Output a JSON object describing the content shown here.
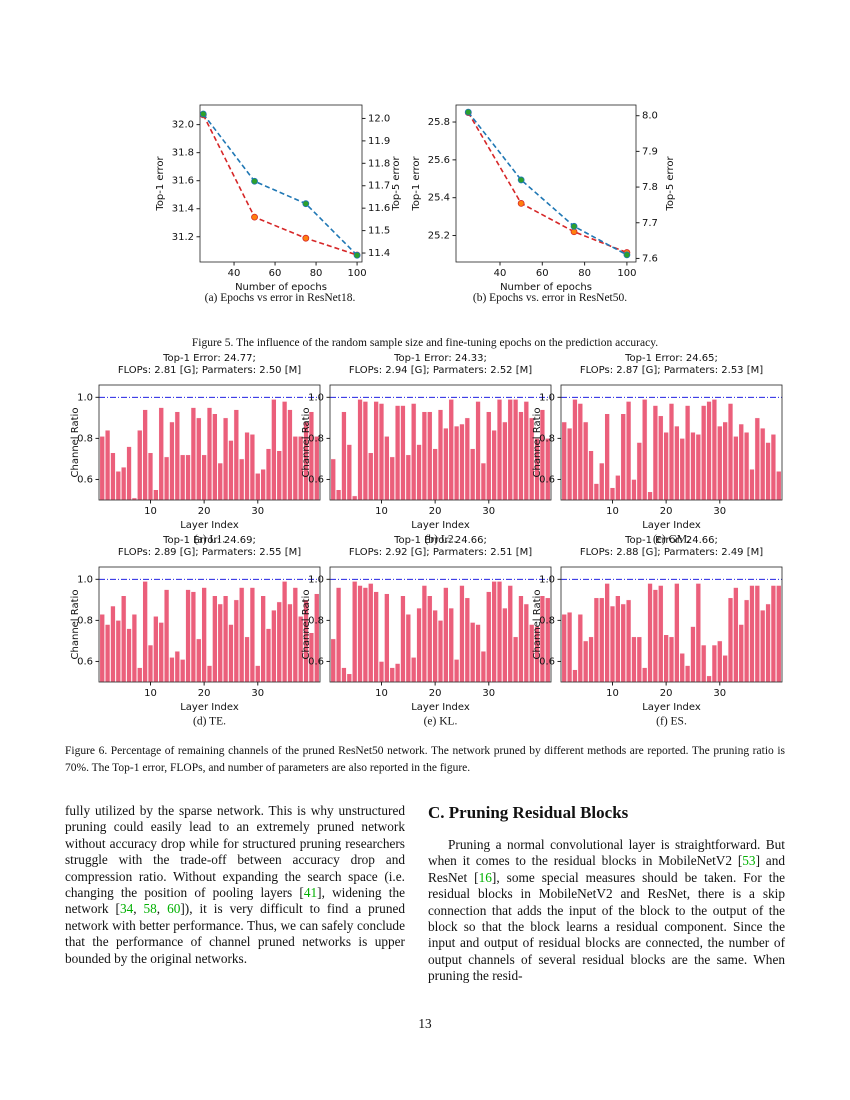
{
  "figure5": {
    "caption": "Figure 5. The influence of the random sample size and fine-tuning epochs on the prediction accuracy.",
    "subcaptions": [
      "(a) Epochs vs error in ResNet18.",
      "(b) Epochs vs. error in ResNet50."
    ]
  },
  "figure6": {
    "caption": "Figure 6. Percentage of remaining channels of the pruned ResNet50 network. The network pruned by different methods are reported. The pruning ratio is 70%. The Top-1 error, FLOPs, and number of parameters are also reported in the figure.",
    "subcaptions": [
      "(a) L1.",
      "(b) L2.",
      "(c) GM.",
      "(d) TE.",
      "(e) KL.",
      "(f) ES."
    ]
  },
  "chart_data": [
    {
      "type": "line",
      "xlabel": "Number of epochs",
      "ylabel": "Top-1 error",
      "y2label": "Top-5 error",
      "x": [
        25,
        50,
        75,
        100
      ],
      "xlim": [
        23.4,
        102.4
      ],
      "xticks": [
        40,
        60,
        80,
        100
      ],
      "ylim": [
        31.02,
        32.14
      ],
      "yticks": [
        31.2,
        31.4,
        31.6,
        31.8,
        {
          "value": 32,
          "label": "32.0"
        }
      ],
      "y2lim": [
        11.36,
        12.06
      ],
      "y2ticks": [
        11.4,
        11.5,
        11.6,
        11.7,
        11.8,
        11.9,
        {
          "value": 12,
          "label": "12.0"
        }
      ],
      "series": [
        {
          "color": "#d62728",
          "marker_color": "#ff7f0e",
          "values": [
            32.07,
            31.34,
            31.19,
            31.07
          ]
        },
        {
          "color": "#1f77b4",
          "marker_color": "#2ca02c",
          "axis": "y2",
          "values": [
            12.02,
            11.72,
            11.62,
            11.39
          ]
        }
      ]
    },
    {
      "type": "line",
      "xlabel": "Number of epochs",
      "ylabel": "Top-1 error",
      "y2label": "Top-5 error",
      "x": [
        25,
        50,
        75,
        100
      ],
      "xlim": [
        19.2,
        104.3
      ],
      "xticks": [
        40,
        60,
        80,
        100
      ],
      "ylim": [
        25.06,
        25.89
      ],
      "yticks": [
        25.2,
        25.4,
        25.6,
        25.8
      ],
      "y2lim": [
        7.59,
        8.03
      ],
      "y2ticks": [
        7.6,
        7.7,
        7.8,
        7.9,
        {
          "value": 8,
          "label": "8.0"
        }
      ],
      "series": [
        {
          "color": "#d62728",
          "marker_color": "#ff7f0e",
          "values": [
            25.85,
            25.37,
            25.22,
            25.11
          ]
        },
        {
          "color": "#1f77b4",
          "marker_color": "#2ca02c",
          "axis": "y2",
          "values": [
            8.01,
            7.82,
            7.69,
            7.61
          ]
        }
      ]
    },
    {
      "type": "bar",
      "title": [
        "Top-1 Error: 24.77;",
        "FLOPs: 2.81 [G]; Parmaters: 2.50 [M]"
      ],
      "xlabel": "Layer Index",
      "ylabel": "Channel Ratio",
      "color": "#eb5f7b",
      "hline": 1,
      "hline_color": "#0000dd",
      "xlim": [
        0.4,
        41.6
      ],
      "xticks": [
        10,
        20,
        30
      ],
      "ylim": [
        0.5,
        1.06
      ],
      "yticks": [
        0.6,
        0.8,
        {
          "value": 1,
          "label": "1.0"
        }
      ],
      "x": [
        1,
        2,
        3,
        4,
        5,
        6,
        7,
        8,
        9,
        10,
        11,
        12,
        13,
        14,
        15,
        16,
        17,
        18,
        19,
        20,
        21,
        22,
        23,
        24,
        25,
        26,
        27,
        28,
        29,
        30,
        31,
        32,
        33,
        34,
        35,
        36,
        37,
        38,
        39,
        40,
        41
      ],
      "values": [
        0.81,
        0.84,
        0.73,
        0.64,
        0.66,
        0.76,
        0.51,
        0.84,
        0.94,
        0.73,
        0.55,
        0.95,
        0.71,
        0.88,
        0.93,
        0.72,
        0.72,
        0.95,
        0.9,
        0.72,
        0.95,
        0.92,
        0.68,
        0.9,
        0.79,
        0.94,
        0.7,
        0.83,
        0.82,
        0.63,
        0.65,
        0.75,
        0.99,
        0.74,
        0.98,
        0.94,
        0.81,
        0.81,
        0.88,
        0.93,
        0.81
      ]
    },
    {
      "type": "bar",
      "title": [
        "Top-1 Error: 24.33;",
        "FLOPs: 2.94 [G]; Parmaters: 2.52 [M]"
      ],
      "xlabel": "Layer Index",
      "ylabel": "Channel Ratio",
      "color": "#eb5f7b",
      "hline": 1,
      "hline_color": "#0000dd",
      "xlim": [
        0.4,
        41.6
      ],
      "xticks": [
        10,
        20,
        30
      ],
      "ylim": [
        0.5,
        1.06
      ],
      "yticks": [
        0.6,
        0.8,
        {
          "value": 1,
          "label": "1.0"
        }
      ],
      "x": [
        1,
        2,
        3,
        4,
        5,
        6,
        7,
        8,
        9,
        10,
        11,
        12,
        13,
        14,
        15,
        16,
        17,
        18,
        19,
        20,
        21,
        22,
        23,
        24,
        25,
        26,
        27,
        28,
        29,
        30,
        31,
        32,
        33,
        34,
        35,
        36,
        37,
        38,
        39,
        40,
        41
      ],
      "values": [
        0.7,
        0.55,
        0.93,
        0.77,
        0.52,
        0.99,
        0.98,
        0.73,
        0.98,
        0.97,
        0.81,
        0.71,
        0.96,
        0.96,
        0.72,
        0.97,
        0.77,
        0.93,
        0.93,
        0.75,
        0.94,
        0.85,
        0.99,
        0.86,
        0.87,
        0.9,
        0.75,
        0.98,
        0.68,
        0.93,
        0.84,
        0.99,
        0.88,
        0.99,
        0.99,
        0.93,
        0.98,
        0.9,
        0.8,
        0.94,
        0.8
      ]
    },
    {
      "type": "bar",
      "title": [
        "Top-1 Error: 24.65;",
        "FLOPs: 2.87 [G]; Parmaters: 2.53 [M]"
      ],
      "xlabel": "Layer Index",
      "ylabel": "Channel Ratio",
      "color": "#eb5f7b",
      "hline": 1,
      "hline_color": "#0000dd",
      "xlim": [
        0.4,
        41.6
      ],
      "xticks": [
        10,
        20,
        30
      ],
      "ylim": [
        0.5,
        1.06
      ],
      "yticks": [
        0.6,
        0.8,
        {
          "value": 1,
          "label": "1.0"
        }
      ],
      "x": [
        1,
        2,
        3,
        4,
        5,
        6,
        7,
        8,
        9,
        10,
        11,
        12,
        13,
        14,
        15,
        16,
        17,
        18,
        19,
        20,
        21,
        22,
        23,
        24,
        25,
        26,
        27,
        28,
        29,
        30,
        31,
        32,
        33,
        34,
        35,
        36,
        37,
        38,
        39,
        40,
        41
      ],
      "values": [
        0.88,
        0.85,
        0.99,
        0.97,
        0.88,
        0.74,
        0.58,
        0.68,
        0.92,
        0.56,
        0.62,
        0.92,
        0.98,
        0.6,
        0.78,
        0.99,
        0.54,
        0.96,
        0.91,
        0.83,
        0.97,
        0.86,
        0.8,
        0.96,
        0.83,
        0.82,
        0.96,
        0.98,
        0.99,
        0.86,
        0.88,
        0.97,
        0.81,
        0.87,
        0.83,
        0.65,
        0.9,
        0.85,
        0.78,
        0.82,
        0.64
      ]
    },
    {
      "type": "bar",
      "title": [
        "Top-1 Error: 24.69;",
        "FLOPs: 2.89 [G]; Parmaters: 2.55 [M]"
      ],
      "xlabel": "Layer Index",
      "ylabel": "Channel Ratio",
      "color": "#eb5f7b",
      "hline": 1,
      "hline_color": "#0000dd",
      "xlim": [
        0.4,
        41.6
      ],
      "xticks": [
        10,
        20,
        30
      ],
      "ylim": [
        0.5,
        1.06
      ],
      "yticks": [
        0.6,
        0.8,
        {
          "value": 1,
          "label": "1.0"
        }
      ],
      "x": [
        1,
        2,
        3,
        4,
        5,
        6,
        7,
        8,
        9,
        10,
        11,
        12,
        13,
        14,
        15,
        16,
        17,
        18,
        19,
        20,
        21,
        22,
        23,
        24,
        25,
        26,
        27,
        28,
        29,
        30,
        31,
        32,
        33,
        34,
        35,
        36,
        37,
        38,
        39,
        40,
        41
      ],
      "values": [
        0.83,
        0.78,
        0.87,
        0.8,
        0.92,
        0.76,
        0.83,
        0.57,
        0.99,
        0.68,
        0.82,
        0.79,
        0.95,
        0.62,
        0.65,
        0.61,
        0.95,
        0.94,
        0.71,
        0.96,
        0.58,
        0.92,
        0.88,
        0.92,
        0.78,
        0.9,
        0.96,
        0.72,
        0.96,
        0.58,
        0.92,
        0.76,
        0.85,
        0.89,
        0.99,
        0.88,
        0.96,
        0.82,
        0.9,
        0.74,
        0.93
      ]
    },
    {
      "type": "bar",
      "title": [
        "Top-1 Error: 24.66;",
        "FLOPs: 2.92 [G]; Parmaters: 2.51 [M]"
      ],
      "xlabel": "Layer Index",
      "ylabel": "Channel Ratio",
      "color": "#eb5f7b",
      "hline": 1,
      "hline_color": "#0000dd",
      "xlim": [
        0.4,
        41.6
      ],
      "xticks": [
        10,
        20,
        30
      ],
      "ylim": [
        0.5,
        1.06
      ],
      "yticks": [
        0.6,
        0.8,
        {
          "value": 1,
          "label": "1.0"
        }
      ],
      "x": [
        1,
        2,
        3,
        4,
        5,
        6,
        7,
        8,
        9,
        10,
        11,
        12,
        13,
        14,
        15,
        16,
        17,
        18,
        19,
        20,
        21,
        22,
        23,
        24,
        25,
        26,
        27,
        28,
        29,
        30,
        31,
        32,
        33,
        34,
        35,
        36,
        37,
        38,
        39,
        40,
        41
      ],
      "values": [
        0.71,
        0.96,
        0.57,
        0.54,
        0.99,
        0.97,
        0.96,
        0.98,
        0.94,
        0.6,
        0.93,
        0.57,
        0.59,
        0.92,
        0.83,
        0.62,
        0.86,
        0.97,
        0.92,
        0.85,
        0.8,
        0.96,
        0.86,
        0.61,
        0.97,
        0.91,
        0.79,
        0.78,
        0.65,
        0.94,
        0.99,
        0.99,
        0.86,
        0.97,
        0.72,
        0.92,
        0.88,
        0.78,
        0.77,
        0.92,
        0.91
      ]
    },
    {
      "type": "bar",
      "title": [
        "Top-1 Error: 24.66;",
        "FLOPs: 2.88 [G]; Parmaters: 2.49 [M]"
      ],
      "xlabel": "Layer Index",
      "ylabel": "Channel Ratio",
      "color": "#eb5f7b",
      "hline": 1,
      "hline_color": "#0000dd",
      "xlim": [
        0.4,
        41.6
      ],
      "xticks": [
        10,
        20,
        30
      ],
      "ylim": [
        0.5,
        1.06
      ],
      "yticks": [
        0.6,
        0.8,
        {
          "value": 1,
          "label": "1.0"
        }
      ],
      "x": [
        1,
        2,
        3,
        4,
        5,
        6,
        7,
        8,
        9,
        10,
        11,
        12,
        13,
        14,
        15,
        16,
        17,
        18,
        19,
        20,
        21,
        22,
        23,
        24,
        25,
        26,
        27,
        28,
        29,
        30,
        31,
        32,
        33,
        34,
        35,
        36,
        37,
        38,
        39,
        40,
        41
      ],
      "values": [
        0.83,
        0.84,
        0.56,
        0.83,
        0.7,
        0.72,
        0.91,
        0.91,
        0.98,
        0.87,
        0.92,
        0.88,
        0.9,
        0.72,
        0.72,
        0.57,
        0.98,
        0.95,
        0.97,
        0.73,
        0.72,
        0.98,
        0.64,
        0.58,
        0.77,
        0.98,
        0.68,
        0.53,
        0.68,
        0.7,
        0.63,
        0.91,
        0.96,
        0.78,
        0.9,
        0.97,
        0.97,
        0.85,
        0.88,
        0.97,
        0.97
      ]
    }
  ],
  "body": {
    "left": [
      "fully utilized by the sparse network. This is why unstructured pruning could easily lead to an extremely pruned network without accuracy drop while for structured pruning researchers struggle with the trade-off between accuracy drop and compression ratio. Without expanding the search space (i.e. changing the position of pooling layers [",
      "41",
      "], widening the network [",
      "34",
      ", ",
      "58",
      ", ",
      "60",
      "]), it is very difficult to find a pruned network with better performance. Thus, we can safely conclude that the performance of channel pruned networks is upper bounded by the original networks."
    ],
    "heading": "C. Pruning Residual Blocks",
    "right": [
      "Pruning a normal convolutional layer is straightforward. But when it comes to the residual blocks in MobileNetV2 [",
      "53",
      "] and ResNet [",
      "16",
      "], some special measures should be taken. For the residual blocks in MobileNetV2 and ResNet, there is a skip connection that adds the input of the block to the output of the block so that the block learns a residual component. Since the input and output of residual blocks are connected, the number of output channels of several residual blocks are the same. When pruning the resid-"
    ]
  },
  "page_number": "13"
}
